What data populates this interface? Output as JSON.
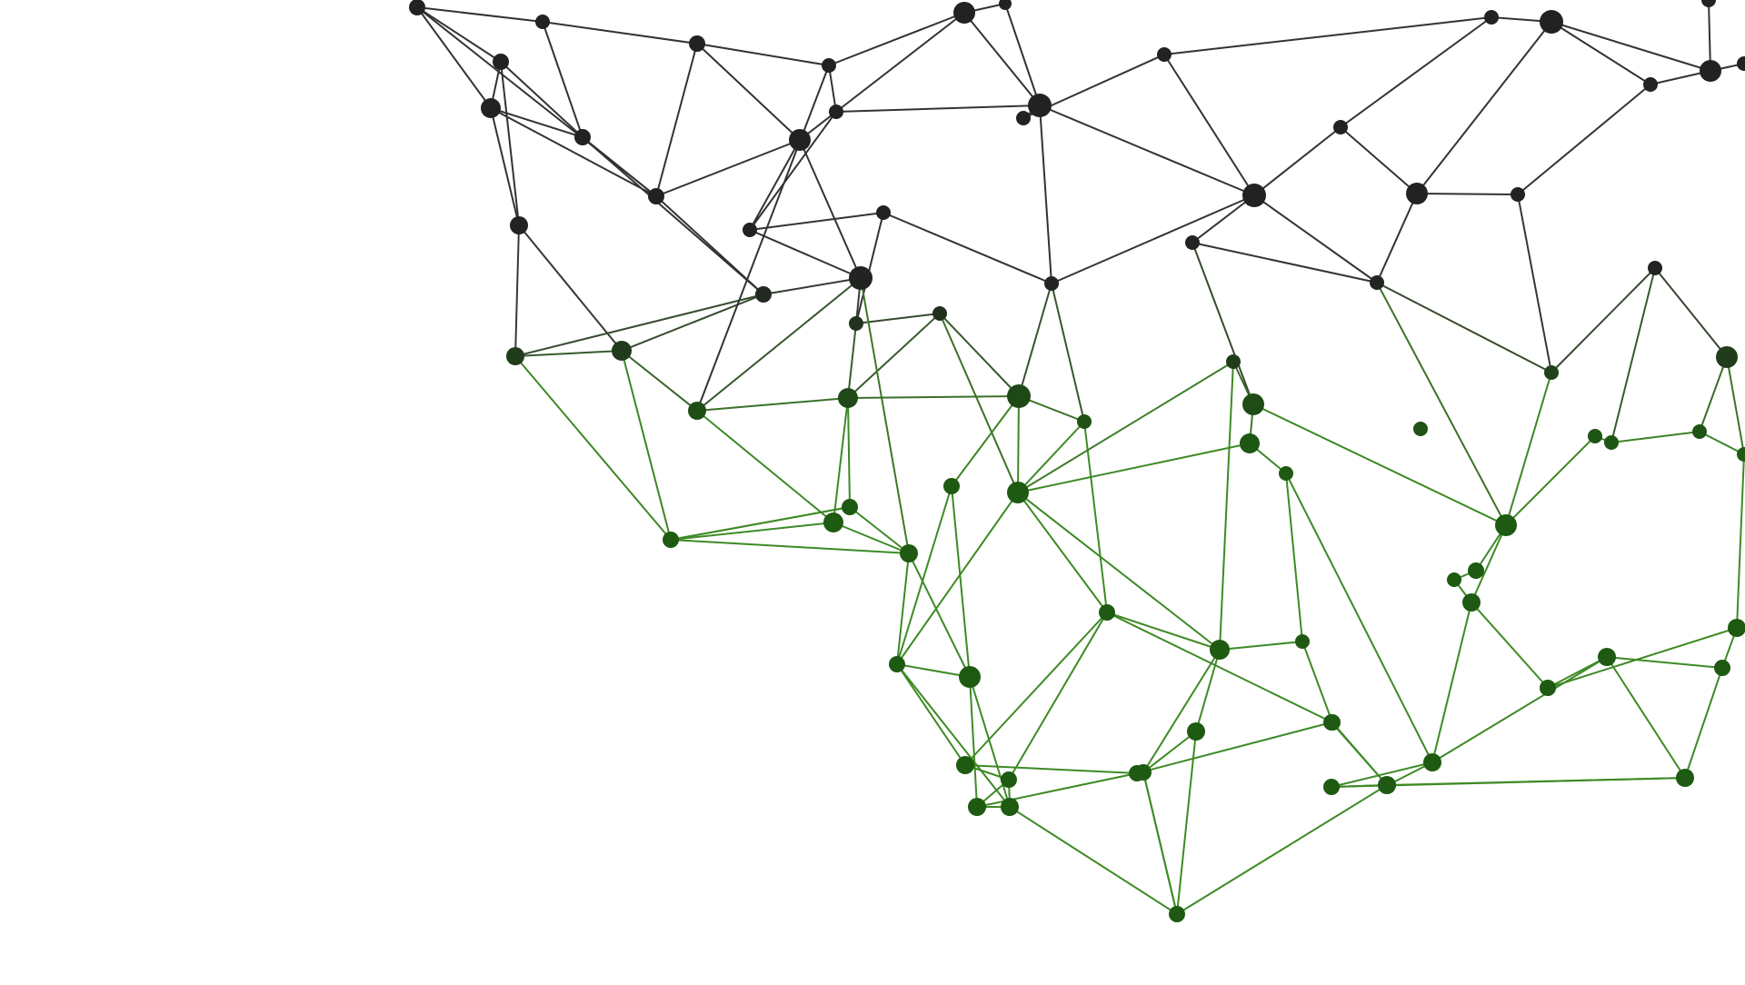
{
  "scene": {
    "subject": "network-mesh",
    "colors": {
      "background": "#ffffff",
      "dark_node": "#222222",
      "dark_edge": "#333333",
      "green_node": "#1e5a12",
      "green_edge": "#3d8a25"
    }
  }
}
